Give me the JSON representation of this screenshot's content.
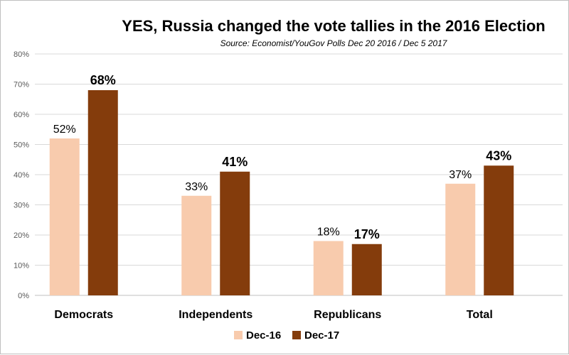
{
  "chart_data": {
    "type": "bar",
    "title": "YES, Russia changed the vote tallies in the 2016 Election",
    "subtitle": "Source: Economist/YouGov Polls Dec 20 2016 / Dec 5 2017",
    "categories": [
      "Democrats",
      "Independents",
      "Republicans",
      "Total"
    ],
    "series": [
      {
        "name": "Dec-16",
        "color": "#f8cbad",
        "values": [
          52,
          33,
          18,
          37
        ],
        "labels": [
          "52%",
          "33%",
          "18%",
          "37%"
        ]
      },
      {
        "name": "Dec-17",
        "color": "#843c0c",
        "values": [
          68,
          41,
          17,
          43
        ],
        "labels": [
          "68%",
          "41%",
          "17%",
          "43%"
        ]
      }
    ],
    "yticks": [
      "0%",
      "10%",
      "20%",
      "30%",
      "40%",
      "50%",
      "60%",
      "70%",
      "80%"
    ],
    "ylim": [
      0,
      80
    ],
    "grid": true,
    "legend_position": "bottom"
  }
}
